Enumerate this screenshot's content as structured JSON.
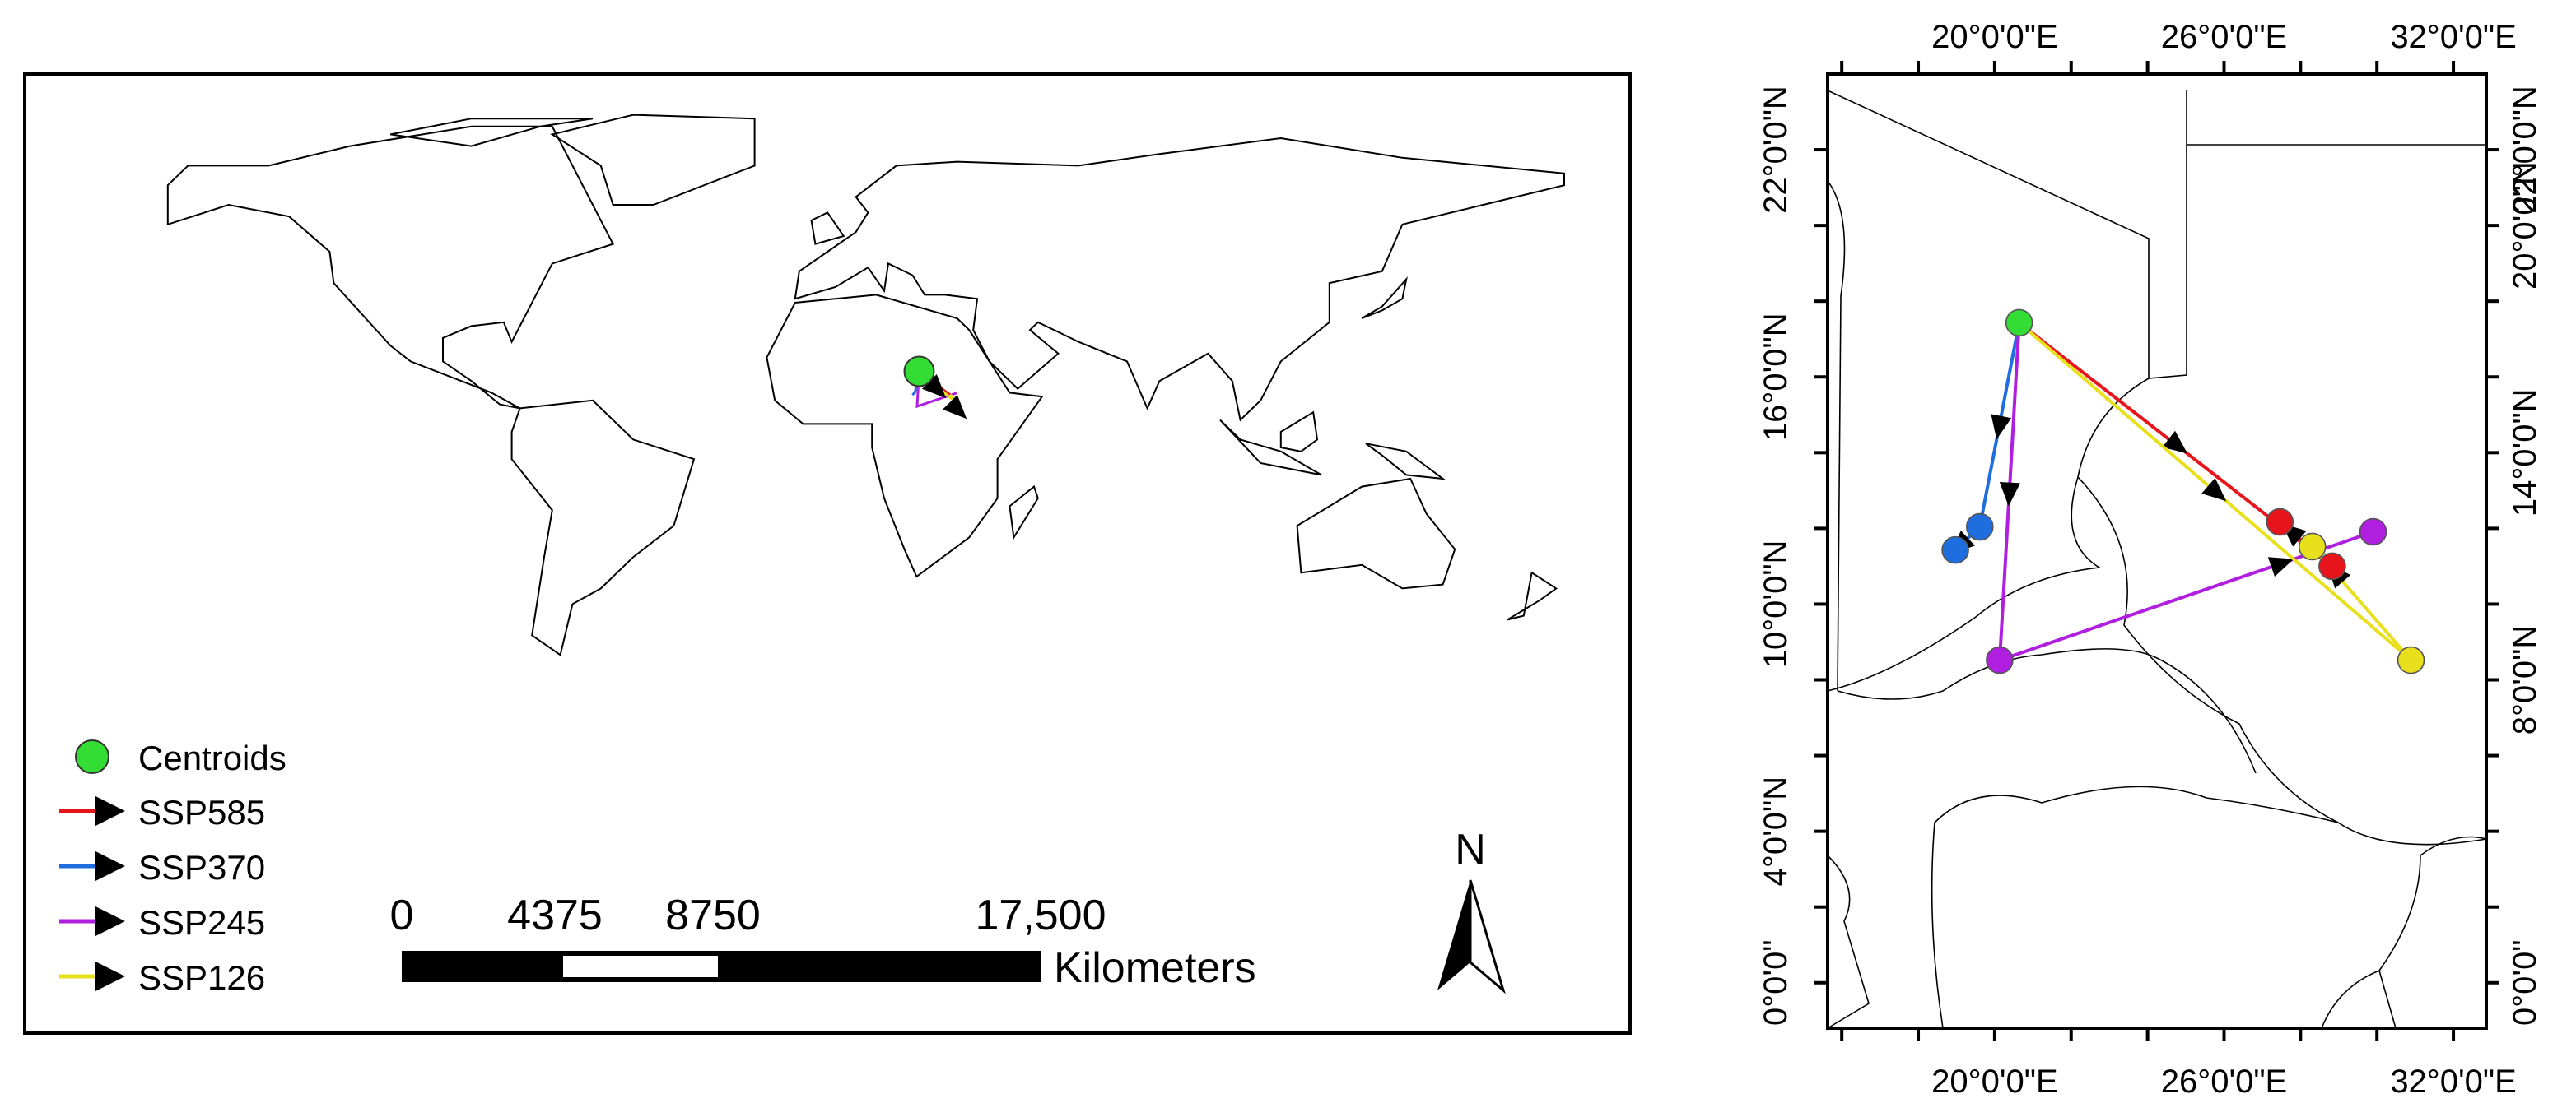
{
  "legend": {
    "centroid_label": "Centroids"
  },
  "scale_bar": {
    "labels": [
      "0",
      "4375",
      "8750",
      "17,500"
    ],
    "unit": "Kilometers"
  },
  "north": "N",
  "centroid": {
    "lon": 20.64,
    "lat": 17.43,
    "color": "#33dd33"
  },
  "series": [
    {
      "name": "SSP585",
      "color": "#e8141c",
      "lon": [
        28.83,
        27.46
      ],
      "lat": [
        11.0,
        12.17
      ]
    },
    {
      "name": "SSP370",
      "color": "#1e6ee0",
      "lon": [
        19.61,
        18.97
      ],
      "lat": [
        12.04,
        11.43
      ]
    },
    {
      "name": "SSP245",
      "color": "#b01ee0",
      "lon": [
        20.13,
        29.9
      ],
      "lat": [
        8.52,
        11.91
      ]
    },
    {
      "name": "SSP126",
      "color": "#e8e01c",
      "lon": [
        30.89,
        28.31
      ],
      "lat": [
        8.52,
        11.52
      ]
    }
  ],
  "inset": {
    "xlim": [
      15.63,
      32.86
    ],
    "ylim": [
      -1.2,
      24
    ],
    "xticks": [
      {
        "value": 20,
        "label": "20°0'0\"E"
      },
      {
        "value": 26,
        "label": "26°0'0\"E"
      },
      {
        "value": 32,
        "label": "32°0'0\"E"
      }
    ],
    "yticks_left": [
      {
        "value": 22,
        "label": "22°0'0\"N"
      },
      {
        "value": 16,
        "label": "16°0'0\"N"
      },
      {
        "value": 10,
        "label": "10°0'0\"N"
      },
      {
        "value": 4,
        "label": "4°0'0\"N"
      },
      {
        "value": 0,
        "label": "0°0'0\""
      }
    ],
    "yticks_right": [
      {
        "value": 22,
        "label": "22°0'0\"N"
      },
      {
        "value": 20,
        "label": "20°0'0\"N"
      },
      {
        "value": 14,
        "label": "14°0'0\"N"
      },
      {
        "value": 8,
        "label": "8°0'0\"N"
      },
      {
        "value": 0,
        "label": "0°0'0\""
      }
    ],
    "minor_xticks": [
      16,
      18,
      20,
      22,
      24,
      26,
      28,
      30,
      32
    ],
    "minor_yticks": [
      0,
      2,
      4,
      6,
      8,
      10,
      12,
      14,
      16,
      18,
      20,
      22
    ]
  }
}
